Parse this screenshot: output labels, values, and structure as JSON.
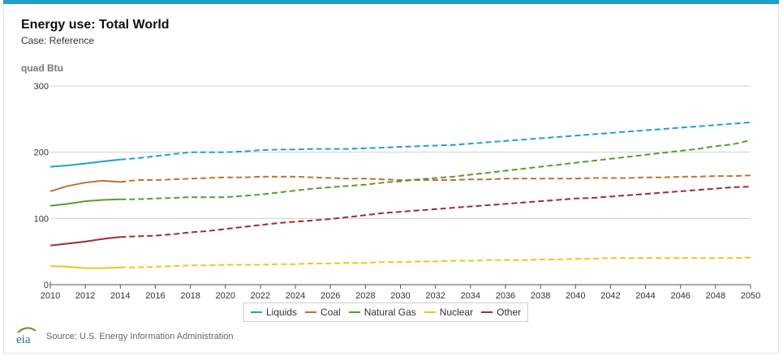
{
  "header": {
    "title": "Energy use: Total World",
    "subtitle": "Case: Reference",
    "unit": "quad Btu"
  },
  "footer": {
    "source": "Source: U.S. Energy Information Administration",
    "logo_text": "eia"
  },
  "colors": {
    "accent_bar": "#1f9fc9",
    "grid": "#d0d0d0",
    "axis": "#555555"
  },
  "chart_data": {
    "type": "line",
    "title": "Energy use: Total World",
    "subtitle": "Case: Reference",
    "ylabel": "quad Btu",
    "xlabel": "",
    "xlim": [
      2010,
      2050
    ],
    "ylim": [
      0,
      300
    ],
    "x_ticks": [
      "2010",
      "2012",
      "2014",
      "2016",
      "2018",
      "2020",
      "2022",
      "2024",
      "2026",
      "2028",
      "2030",
      "2032",
      "2034",
      "2036",
      "2038",
      "2040",
      "2042",
      "2044",
      "2046",
      "2048",
      "2050"
    ],
    "y_ticks": [
      "0",
      "100",
      "200",
      "300"
    ],
    "grid": true,
    "legend_position": "bottom-center",
    "history_end": 2014,
    "x": [
      2010,
      2011,
      2012,
      2013,
      2014,
      2015,
      2016,
      2017,
      2018,
      2019,
      2020,
      2021,
      2022,
      2023,
      2024,
      2025,
      2026,
      2027,
      2028,
      2029,
      2030,
      2031,
      2032,
      2033,
      2034,
      2035,
      2036,
      2037,
      2038,
      2039,
      2040,
      2041,
      2042,
      2043,
      2044,
      2045,
      2046,
      2047,
      2048,
      2049,
      2050
    ],
    "series": [
      {
        "name": "Liquids",
        "color": "#1f9fd6",
        "values": [
          178,
          180,
          183,
          186,
          189,
          191,
          194,
          197,
          200,
          200,
          200,
          201,
          203,
          204,
          204,
          205,
          205,
          205,
          206,
          207,
          208,
          209,
          210,
          211,
          213,
          215,
          217,
          219,
          221,
          223,
          225,
          227,
          229,
          231,
          233,
          235,
          237,
          239,
          241,
          243,
          245
        ]
      },
      {
        "name": "Coal",
        "color": "#c0722e",
        "values": [
          141,
          149,
          154,
          157,
          155,
          158,
          158,
          159,
          160,
          161,
          162,
          162,
          163,
          163,
          163,
          162,
          161,
          160,
          160,
          159,
          158,
          158,
          158,
          158,
          159,
          159,
          160,
          160,
          160,
          160,
          160,
          161,
          161,
          161,
          162,
          162,
          163,
          163,
          164,
          164,
          165
        ]
      },
      {
        "name": "Natural Gas",
        "color": "#5d9a2e",
        "values": [
          119,
          122,
          126,
          128,
          129,
          129,
          130,
          131,
          132,
          132,
          132,
          134,
          136,
          139,
          142,
          145,
          147,
          149,
          151,
          154,
          156,
          159,
          161,
          163,
          166,
          169,
          172,
          175,
          178,
          181,
          184,
          187,
          190,
          193,
          196,
          199,
          202,
          205,
          209,
          212,
          218
        ]
      },
      {
        "name": "Nuclear",
        "color": "#f2c21b",
        "values": [
          28,
          27,
          25,
          25,
          26,
          26,
          27,
          28,
          29,
          29,
          30,
          30,
          30,
          31,
          31,
          32,
          32,
          33,
          33,
          34,
          34,
          35,
          35,
          36,
          36,
          37,
          37,
          37,
          38,
          38,
          39,
          39,
          40,
          40,
          40,
          40,
          40,
          40,
          40,
          40,
          41
        ]
      },
      {
        "name": "Other",
        "color": "#a22a3a",
        "values": [
          59,
          62,
          65,
          69,
          72,
          73,
          74,
          76,
          79,
          81,
          84,
          87,
          90,
          93,
          95,
          97,
          99,
          102,
          105,
          108,
          110,
          112,
          114,
          116,
          118,
          120,
          122,
          124,
          126,
          128,
          130,
          131,
          133,
          135,
          137,
          139,
          141,
          143,
          145,
          147,
          148
        ]
      }
    ]
  }
}
